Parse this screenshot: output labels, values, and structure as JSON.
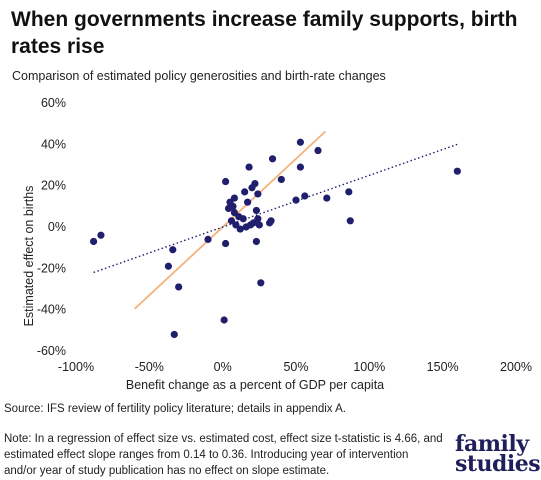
{
  "title": "When governments increase family supports, birth rates rise",
  "subtitle": "Comparison of estimated policy generosities and birth-rate changes",
  "source": "Source: IFS review of fertility policy literature; details in appendix A.",
  "note": "Note: In a regression of effect size vs. estimated cost, effect size t-statistic is 4.66, and estimated effect slope ranges from 0.14 to 0.36. Introducing year of intervention and/or year of study publication has no effect on slope estimate.",
  "logo": {
    "line1": "family",
    "line2": "studies"
  },
  "colors": {
    "points": "#1f1f6e",
    "high_slope_line": "#f5b27a",
    "low_slope_line": "#1f1f6e"
  },
  "chart_data": {
    "type": "scatter",
    "xlabel": "Benefit change as a percent of GDP per capita",
    "ylabel": "Estimated effect on births",
    "xlim": [
      -100,
      200
    ],
    "ylim": [
      -60,
      60
    ],
    "x_ticks": [
      "-100%",
      "-50%",
      "0%",
      "50%",
      "100%",
      "150%",
      "200%"
    ],
    "y_ticks": [
      "60%",
      "40%",
      "20%",
      "0%",
      "-20%",
      "-40%",
      "-60%"
    ],
    "grid": false,
    "points": [
      {
        "x": -88,
        "y": -7
      },
      {
        "x": -83,
        "y": -4
      },
      {
        "x": -37,
        "y": -19
      },
      {
        "x": -34,
        "y": -11
      },
      {
        "x": -33,
        "y": -52
      },
      {
        "x": -30,
        "y": -29
      },
      {
        "x": -10,
        "y": -6
      },
      {
        "x": 1,
        "y": -45
      },
      {
        "x": 2,
        "y": -8
      },
      {
        "x": 2,
        "y": 22
      },
      {
        "x": 4,
        "y": 9
      },
      {
        "x": 5,
        "y": 12
      },
      {
        "x": 6,
        "y": 3
      },
      {
        "x": 7,
        "y": 10
      },
      {
        "x": 8,
        "y": 7
      },
      {
        "x": 8,
        "y": 14
      },
      {
        "x": 9,
        "y": 1
      },
      {
        "x": 11,
        "y": 5
      },
      {
        "x": 12,
        "y": -1
      },
      {
        "x": 14,
        "y": 4
      },
      {
        "x": 15,
        "y": 17
      },
      {
        "x": 16,
        "y": 0
      },
      {
        "x": 17,
        "y": 12
      },
      {
        "x": 18,
        "y": 29
      },
      {
        "x": 19,
        "y": 1
      },
      {
        "x": 20,
        "y": 19
      },
      {
        "x": 21,
        "y": 2
      },
      {
        "x": 22,
        "y": 21
      },
      {
        "x": 23,
        "y": 8
      },
      {
        "x": 23,
        "y": -7
      },
      {
        "x": 24,
        "y": 16
      },
      {
        "x": 24,
        "y": 4
      },
      {
        "x": 25,
        "y": 1
      },
      {
        "x": 26,
        "y": -27
      },
      {
        "x": 32,
        "y": 2
      },
      {
        "x": 33,
        "y": 3
      },
      {
        "x": 34,
        "y": 33
      },
      {
        "x": 40,
        "y": 23
      },
      {
        "x": 50,
        "y": 13
      },
      {
        "x": 53,
        "y": 29
      },
      {
        "x": 53,
        "y": 41
      },
      {
        "x": 56,
        "y": 15
      },
      {
        "x": 65,
        "y": 37
      },
      {
        "x": 71,
        "y": 14
      },
      {
        "x": 86,
        "y": 17
      },
      {
        "x": 87,
        "y": 3
      },
      {
        "x": 160,
        "y": 27
      }
    ],
    "lines": [
      {
        "style": "solid",
        "slope": 0.66,
        "intercept": 0
      },
      {
        "style": "dotted",
        "slope": 0.25,
        "intercept": 0
      }
    ]
  }
}
